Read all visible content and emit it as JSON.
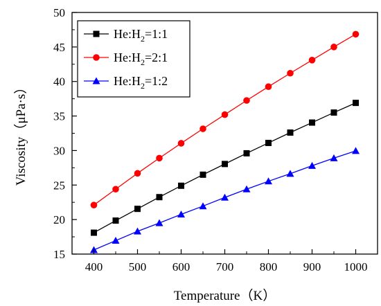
{
  "chart_data": {
    "type": "line",
    "xlabel": "Temperature（K）",
    "ylabel": "Viscosity（μPa·s）",
    "xlim": [
      350,
      1050
    ],
    "ylim": [
      15,
      50
    ],
    "x_ticks": [
      400,
      500,
      600,
      700,
      800,
      900,
      1000
    ],
    "y_ticks": [
      15,
      20,
      25,
      30,
      35,
      40,
      45,
      50
    ],
    "grid": false,
    "legend_position": "top-left",
    "x": [
      400,
      450,
      500,
      550,
      600,
      650,
      700,
      750,
      800,
      850,
      900,
      950,
      1000
    ],
    "series": [
      {
        "name": "He:H2=1:1",
        "legend": {
          "prefix": "He:H",
          "sub": "2",
          "suffix": "=1:1"
        },
        "color": "#000000",
        "marker": "square",
        "values": [
          18.1,
          19.85,
          21.55,
          23.25,
          24.9,
          26.5,
          28.05,
          29.6,
          31.1,
          32.6,
          34.05,
          35.5,
          36.9
        ]
      },
      {
        "name": "He:H2=2:1",
        "legend": {
          "prefix": "He:H",
          "sub": "2",
          "suffix": "=2:1"
        },
        "color": "#ff0000",
        "marker": "circle",
        "values": [
          22.1,
          24.4,
          26.7,
          28.9,
          31.05,
          33.15,
          35.2,
          37.25,
          39.25,
          41.2,
          43.1,
          45.0,
          46.85
        ]
      },
      {
        "name": "He:H2=1:2",
        "legend": {
          "prefix": "He:H",
          "sub": "2",
          "suffix": "=1:2"
        },
        "color": "#0000ff",
        "marker": "triangle",
        "values": [
          15.6,
          16.95,
          18.3,
          19.5,
          20.75,
          21.95,
          23.2,
          24.4,
          25.55,
          26.65,
          27.8,
          28.9,
          29.95
        ]
      }
    ]
  }
}
